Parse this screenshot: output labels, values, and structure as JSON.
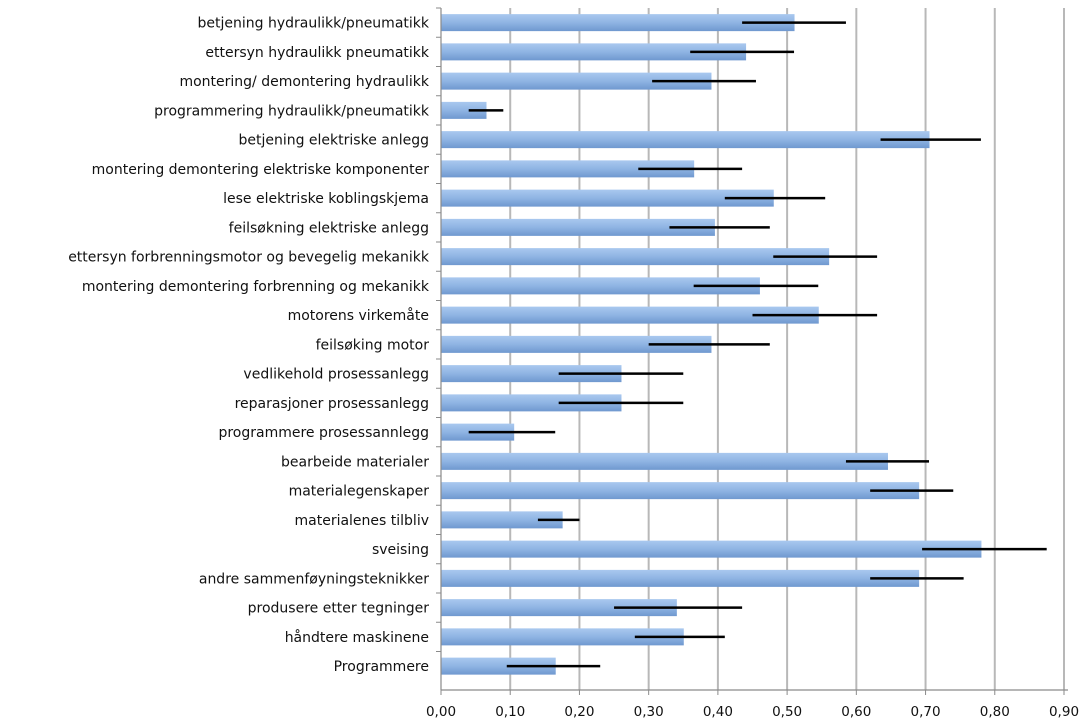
{
  "chart_data": {
    "type": "bar",
    "orientation": "horizontal",
    "categories": [
      "betjening hydraulikk/pneumatikk",
      "ettersyn hydraulikk pneumatikk",
      "montering/ demontering hydraulikk",
      "programmering hydraulikk/pneumatikk",
      "betjening elektriske anlegg",
      "montering demontering elektriske komponenter",
      "lese elektriske koblingskjema",
      "feilsøkning elektriske anlegg",
      "ettersyn forbrenningsmotor og bevegelig mekanikk",
      "montering demontering forbrenning og mekanikk",
      "motorens virkemåte",
      "feilsøking motor",
      "vedlikehold prosessanlegg",
      "reparasjoner prosessanlegg",
      "programmere prosessannlegg",
      "bearbeide materialer",
      "materialegenskaper",
      "materialenes tilbliv",
      "sveising",
      "andre sammenføyningsteknikker",
      "produsere etter tegninger",
      "håndtere maskinene",
      "Programmere"
    ],
    "values": [
      0.51,
      0.44,
      0.39,
      0.065,
      0.705,
      0.365,
      0.48,
      0.395,
      0.56,
      0.46,
      0.545,
      0.39,
      0.26,
      0.26,
      0.105,
      0.645,
      0.69,
      0.175,
      0.78,
      0.69,
      0.34,
      0.35,
      0.165
    ],
    "error_low": [
      0.435,
      0.36,
      0.305,
      0.04,
      0.635,
      0.285,
      0.41,
      0.33,
      0.48,
      0.365,
      0.45,
      0.3,
      0.17,
      0.17,
      0.04,
      0.585,
      0.62,
      0.14,
      0.695,
      0.62,
      0.25,
      0.28,
      0.095
    ],
    "error_high": [
      0.585,
      0.51,
      0.455,
      0.09,
      0.78,
      0.435,
      0.555,
      0.475,
      0.63,
      0.545,
      0.63,
      0.475,
      0.35,
      0.35,
      0.165,
      0.705,
      0.74,
      0.2,
      0.875,
      0.755,
      0.435,
      0.41,
      0.23
    ],
    "xticks": [
      "0,00",
      "0,10",
      "0,20",
      "0,30",
      "0,40",
      "0,50",
      "0,60",
      "0,70",
      "0,80",
      "0,90"
    ],
    "xlim": [
      0,
      0.9
    ],
    "grid": "vertical",
    "title": "",
    "xlabel": "",
    "ylabel": "",
    "colors": {
      "bar": "#8fb4e3",
      "bar_edge": "#6f98cf",
      "grid": "#b8b8b8",
      "axis": "#8a8a8a",
      "error": "#000000"
    }
  }
}
